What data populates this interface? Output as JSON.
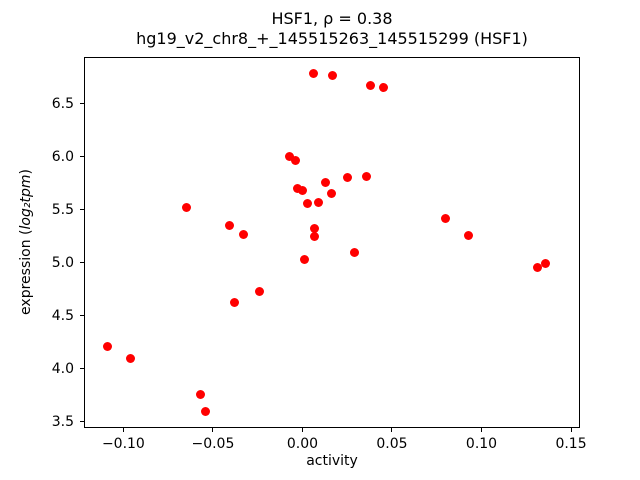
{
  "chart_data": {
    "type": "scatter",
    "title": "HSF1, ρ = 0.38",
    "subtitle": "hg19_v2_chr8_+_145515263_145515299 (HSF1)",
    "xlabel": "activity",
    "ylabel": "expression (log₂tpm)",
    "ylabel_parts": {
      "prefix": "expression (",
      "math": "log₂tpm",
      "suffix": ")"
    },
    "marker_color": "#ff0000",
    "marker_size_px": 9,
    "grid": false,
    "legend": "none",
    "xlim": [
      -0.122,
      0.155
    ],
    "ylim": [
      3.44,
      6.94
    ],
    "xticks": [
      -0.1,
      -0.05,
      0.0,
      0.05,
      0.1,
      0.15
    ],
    "xtick_labels": [
      "−0.10",
      "−0.05",
      "0.00",
      "0.05",
      "0.10",
      "0.15"
    ],
    "yticks": [
      3.5,
      4.0,
      4.5,
      5.0,
      5.5,
      6.0,
      6.5
    ],
    "ytick_labels": [
      "3.5",
      "4.0",
      "4.5",
      "5.0",
      "5.5",
      "6.0",
      "6.5"
    ],
    "points": [
      [
        -0.109,
        4.21
      ],
      [
        -0.096,
        4.1
      ],
      [
        -0.065,
        5.52
      ],
      [
        -0.057,
        3.76
      ],
      [
        -0.054,
        3.6
      ],
      [
        -0.041,
        5.35
      ],
      [
        -0.038,
        4.62
      ],
      [
        -0.033,
        5.27
      ],
      [
        -0.024,
        4.73
      ],
      [
        -0.007,
        6.0
      ],
      [
        -0.004,
        5.96
      ],
      [
        -0.003,
        5.7
      ],
      [
        0.0,
        5.68
      ],
      [
        0.001,
        5.03
      ],
      [
        0.003,
        5.56
      ],
      [
        0.006,
        6.78
      ],
      [
        0.007,
        5.32
      ],
      [
        0.007,
        5.25
      ],
      [
        0.009,
        5.57
      ],
      [
        0.013,
        5.76
      ],
      [
        0.016,
        5.65
      ],
      [
        0.017,
        6.77
      ],
      [
        0.025,
        5.8
      ],
      [
        0.029,
        5.1
      ],
      [
        0.036,
        5.81
      ],
      [
        0.038,
        6.67
      ],
      [
        0.045,
        6.65
      ],
      [
        0.08,
        5.42
      ],
      [
        0.093,
        5.26
      ],
      [
        0.131,
        4.95
      ],
      [
        0.136,
        4.99
      ]
    ]
  }
}
